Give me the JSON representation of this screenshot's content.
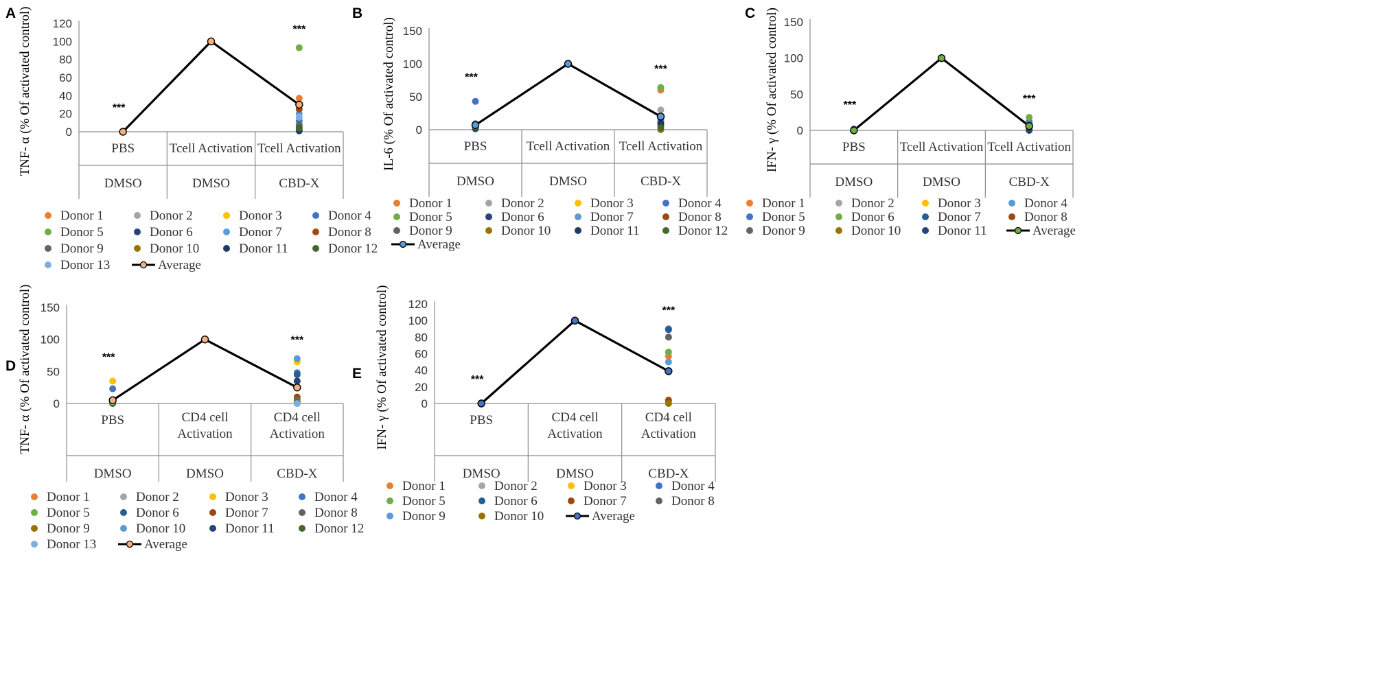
{
  "figure": {
    "panels": [
      {
        "letter": "A",
        "ylabel": "TNF- α (% Of activated control)",
        "ticks": [
          "0",
          "20",
          "40",
          "60",
          "80",
          "100",
          "120"
        ],
        "cats": [
          {
            "line1": "PBS",
            "line2": "",
            "group": "DMSO",
            "sig": "***"
          },
          {
            "line1": "Tcell Activation",
            "line2": "",
            "group": "DMSO",
            "sig": ""
          },
          {
            "line1": "Tcell Activation",
            "line2": "",
            "group": "CBD-X",
            "sig": "***"
          }
        ],
        "donors": [
          "Donor 1",
          "Donor 2",
          "Donor 3",
          "Donor 4",
          "Donor 5",
          "Donor 6",
          "Donor 7",
          "Donor 8",
          "Donor 9",
          "Donor 10",
          "Donor 11",
          "Donor 12",
          "Donor 13"
        ],
        "average_label": "Average"
      },
      {
        "letter": "B",
        "ylabel": "IL-6 (% Of activated control)",
        "ticks": [
          "0",
          "50",
          "100",
          "150"
        ],
        "cats": [
          {
            "line1": "PBS",
            "line2": "",
            "group": "DMSO",
            "sig": "***"
          },
          {
            "line1": "Tcell Activation",
            "line2": "",
            "group": "DMSO",
            "sig": ""
          },
          {
            "line1": "Tcell Activation",
            "line2": "",
            "group": "CBD-X",
            "sig": "***"
          }
        ],
        "donors": [
          "Donor 1",
          "Donor 2",
          "Donor 3",
          "Donor 4",
          "Donor 5",
          "Donor 6",
          "Donor 7",
          "Donor 8",
          "Donor 9",
          "Donor 10",
          "Donor 11",
          "Donor 12"
        ],
        "average_label": "Average"
      },
      {
        "letter": "C",
        "ylabel": "IFN- γ (% Of activated control)",
        "ticks": [
          "0",
          "50",
          "100",
          "150"
        ],
        "cats": [
          {
            "line1": "PBS",
            "line2": "",
            "group": "DMSO",
            "sig": "***"
          },
          {
            "line1": "Tcell Activation",
            "line2": "",
            "group": "DMSO",
            "sig": ""
          },
          {
            "line1": "Tcell Activation",
            "line2": "",
            "group": "CBD-X",
            "sig": "***"
          }
        ],
        "donors": [
          "Donor 1",
          "Donor 2",
          "Donor 3",
          "Donor 4",
          "Donor 5",
          "Donor 6",
          "Donor 7",
          "Donor 8",
          "Donor 9",
          "Donor 10",
          "Donor 11"
        ],
        "average_label": "Average"
      },
      {
        "letter": "D",
        "ylabel": "TNF- α (% Of activated control)",
        "ticks": [
          "0",
          "50",
          "100",
          "150"
        ],
        "cats": [
          {
            "line1": "PBS",
            "line2": "",
            "group": "DMSO",
            "sig": "***"
          },
          {
            "line1": "CD4 cell",
            "line2": "Activation",
            "group": "DMSO",
            "sig": ""
          },
          {
            "line1": "CD4 cell",
            "line2": "Activation",
            "group": "CBD-X",
            "sig": "***"
          }
        ],
        "donors": [
          "Donor 1",
          "Donor 2",
          "Donor 3",
          "Donor 4",
          "Donor 5",
          "Donor 6",
          "Donor 7",
          "Donor 8",
          "Donor 9",
          "Donor 10",
          "Donor 11",
          "Donor 12",
          "Donor 13"
        ],
        "average_label": "Average"
      },
      {
        "letter": "E",
        "ylabel": "IFN- γ (% Of activated control)",
        "ticks": [
          "0",
          "20",
          "40",
          "60",
          "80",
          "100",
          "120"
        ],
        "cats": [
          {
            "line1": "PBS",
            "line2": "",
            "group": "DMSO",
            "sig": "***"
          },
          {
            "line1": "CD4 cell",
            "line2": "Activation",
            "group": "DMSO",
            "sig": ""
          },
          {
            "line1": "CD4 cell",
            "line2": "Activation",
            "group": "CBD-X",
            "sig": "***"
          }
        ],
        "donors": [
          "Donor 1",
          "Donor 2",
          "Donor 3",
          "Donor 4",
          "Donor 5",
          "Donor 6",
          "Donor 7",
          "Donor 8",
          "Donor 9",
          "Donor 10"
        ],
        "average_label": "Average"
      }
    ]
  },
  "chart_data": [
    {
      "panel": "A",
      "type": "scatter",
      "categories": [
        "PBS / DMSO",
        "Tcell Activation / DMSO",
        "Tcell Activation / CBD-X"
      ],
      "ylabel": "TNF- α (% Of activated control)",
      "ylim": [
        0,
        120
      ],
      "series": [
        {
          "name": "Donor 1",
          "color": "#ED7D31",
          "values": [
            0,
            100,
            37
          ]
        },
        {
          "name": "Donor 2",
          "color": "#A5A5A5",
          "values": [
            0,
            100,
            8
          ]
        },
        {
          "name": "Donor 3",
          "color": "#FFC000",
          "values": [
            0,
            100,
            3
          ]
        },
        {
          "name": "Donor 4",
          "color": "#4472C4",
          "values": [
            0,
            100,
            12
          ]
        },
        {
          "name": "Donor 5",
          "color": "#70AD47",
          "values": [
            0,
            100,
            93
          ]
        },
        {
          "name": "Donor 6",
          "color": "#264478",
          "values": [
            0,
            100,
            5
          ]
        },
        {
          "name": "Donor 7",
          "color": "#5B9BD5",
          "values": [
            0,
            100,
            20
          ]
        },
        {
          "name": "Donor 8",
          "color": "#9E480E",
          "values": [
            0,
            100,
            25
          ]
        },
        {
          "name": "Donor 9",
          "color": "#636363",
          "values": [
            0,
            100,
            7
          ]
        },
        {
          "name": "Donor 10",
          "color": "#997300",
          "values": [
            0,
            100,
            2
          ]
        },
        {
          "name": "Donor 11",
          "color": "#203864",
          "values": [
            0,
            100,
            1
          ]
        },
        {
          "name": "Donor 12",
          "color": "#43682B",
          "values": [
            0,
            100,
            4
          ]
        },
        {
          "name": "Donor 13",
          "color": "#7CAFDD",
          "values": [
            0,
            100,
            16
          ]
        },
        {
          "name": "Average",
          "type": "line",
          "color": "#000000",
          "marker": "#F4B183",
          "values": [
            0,
            100,
            30
          ]
        }
      ]
    },
    {
      "panel": "B",
      "type": "scatter",
      "categories": [
        "PBS / DMSO",
        "Tcell Activation / DMSO",
        "Tcell Activation / CBD-X"
      ],
      "ylabel": "IL-6 (% Of activated control)",
      "ylim": [
        0,
        150
      ],
      "series": [
        {
          "name": "Donor 1",
          "color": "#ED7D31",
          "values": [
            5,
            100,
            60
          ]
        },
        {
          "name": "Donor 2",
          "color": "#A5A5A5",
          "values": [
            3,
            100,
            30
          ]
        },
        {
          "name": "Donor 3",
          "color": "#FFC000",
          "values": [
            2,
            100,
            5
          ]
        },
        {
          "name": "Donor 4",
          "color": "#4472C4",
          "values": [
            43,
            100,
            15
          ]
        },
        {
          "name": "Donor 5",
          "color": "#70AD47",
          "values": [
            4,
            100,
            64
          ]
        },
        {
          "name": "Donor 6",
          "color": "#264478",
          "values": [
            2,
            100,
            8
          ]
        },
        {
          "name": "Donor 7",
          "color": "#5B9BD5",
          "values": [
            1,
            100,
            12
          ]
        },
        {
          "name": "Donor 8",
          "color": "#9E480E",
          "values": [
            6,
            100,
            20
          ]
        },
        {
          "name": "Donor 9",
          "color": "#636363",
          "values": [
            9,
            100,
            18
          ]
        },
        {
          "name": "Donor 10",
          "color": "#997300",
          "values": [
            3,
            100,
            0
          ]
        },
        {
          "name": "Donor 11",
          "color": "#203864",
          "values": [
            2,
            100,
            10
          ]
        },
        {
          "name": "Donor 12",
          "color": "#43682B",
          "values": [
            4,
            100,
            3
          ]
        },
        {
          "name": "Average",
          "type": "line",
          "color": "#000000",
          "marker": "#5B9BD5",
          "values": [
            7,
            100,
            20
          ]
        }
      ]
    },
    {
      "panel": "C",
      "type": "scatter",
      "categories": [
        "PBS / DMSO",
        "Tcell Activation / DMSO",
        "Tcell Activation / CBD-X"
      ],
      "ylabel": "IFN- γ (% Of activated control)",
      "ylim": [
        0,
        150
      ],
      "series": [
        {
          "name": "Donor 1",
          "color": "#ED7D31",
          "values": [
            0,
            100,
            5
          ]
        },
        {
          "name": "Donor 2",
          "color": "#A5A5A5",
          "values": [
            0,
            100,
            8
          ]
        },
        {
          "name": "Donor 3",
          "color": "#FFC000",
          "values": [
            0,
            100,
            2
          ]
        },
        {
          "name": "Donor 4",
          "color": "#5B9BD5",
          "values": [
            1,
            100,
            10
          ]
        },
        {
          "name": "Donor 5",
          "color": "#4472C4",
          "values": [
            2,
            100,
            12
          ]
        },
        {
          "name": "Donor 6",
          "color": "#70AD47",
          "values": [
            0,
            100,
            18
          ]
        },
        {
          "name": "Donor 7",
          "color": "#255E91",
          "values": [
            1,
            100,
            6
          ]
        },
        {
          "name": "Donor 8",
          "color": "#9E480E",
          "values": [
            0,
            100,
            3
          ]
        },
        {
          "name": "Donor 9",
          "color": "#636363",
          "values": [
            0,
            100,
            4
          ]
        },
        {
          "name": "Donor 10",
          "color": "#997300",
          "values": [
            0,
            100,
            1
          ]
        },
        {
          "name": "Donor 11",
          "color": "#264478",
          "values": [
            0,
            100,
            0
          ]
        },
        {
          "name": "Average",
          "type": "line",
          "color": "#000000",
          "marker": "#70AD47",
          "values": [
            0,
            100,
            6
          ]
        }
      ]
    },
    {
      "panel": "D",
      "type": "scatter",
      "categories": [
        "PBS / DMSO",
        "CD4 cell Activation / DMSO",
        "CD4 cell Activation / CBD-X"
      ],
      "ylabel": "TNF- α (% Of activated control)",
      "ylim": [
        0,
        150
      ],
      "series": [
        {
          "name": "Donor 1",
          "color": "#ED7D31",
          "values": [
            2,
            100,
            0
          ]
        },
        {
          "name": "Donor 2",
          "color": "#A5A5A5",
          "values": [
            4,
            100,
            25
          ]
        },
        {
          "name": "Donor 3",
          "color": "#FFC000",
          "values": [
            35,
            100,
            65
          ]
        },
        {
          "name": "Donor 4",
          "color": "#4472C4",
          "values": [
            23,
            100,
            48
          ]
        },
        {
          "name": "Donor 5",
          "color": "#70AD47",
          "values": [
            0,
            100,
            2
          ]
        },
        {
          "name": "Donor 6",
          "color": "#255E91",
          "values": [
            5,
            100,
            45
          ]
        },
        {
          "name": "Donor 7",
          "color": "#9E480E",
          "values": [
            1,
            100,
            10
          ]
        },
        {
          "name": "Donor 8",
          "color": "#636363",
          "values": [
            3,
            100,
            6
          ]
        },
        {
          "name": "Donor 9",
          "color": "#997300",
          "values": [
            1,
            100,
            3
          ]
        },
        {
          "name": "Donor 10",
          "color": "#5B9BD5",
          "values": [
            6,
            100,
            70
          ]
        },
        {
          "name": "Donor 11",
          "color": "#264478",
          "values": [
            2,
            100,
            35
          ]
        },
        {
          "name": "Donor 12",
          "color": "#43682B",
          "values": [
            0,
            100,
            1
          ]
        },
        {
          "name": "Donor 13",
          "color": "#7CAFDD",
          "values": [
            3,
            100,
            0
          ]
        },
        {
          "name": "Average",
          "type": "line",
          "color": "#000000",
          "marker": "#F4B183",
          "values": [
            5,
            100,
            25
          ]
        }
      ]
    },
    {
      "panel": "E",
      "type": "scatter",
      "categories": [
        "PBS / DMSO",
        "CD4 cell Activation / DMSO",
        "CD4 cell Activation / CBD-X"
      ],
      "ylabel": "IFN- γ (% Of activated control)",
      "ylim": [
        0,
        120
      ],
      "series": [
        {
          "name": "Donor 1",
          "color": "#ED7D31",
          "values": [
            0,
            100,
            57
          ]
        },
        {
          "name": "Donor 2",
          "color": "#A5A5A5",
          "values": [
            0,
            100,
            38
          ]
        },
        {
          "name": "Donor 3",
          "color": "#FFC000",
          "values": [
            0,
            100,
            2
          ]
        },
        {
          "name": "Donor 4",
          "color": "#4472C4",
          "values": [
            0,
            100,
            90
          ]
        },
        {
          "name": "Donor 5",
          "color": "#70AD47",
          "values": [
            0,
            100,
            62
          ]
        },
        {
          "name": "Donor 6",
          "color": "#255E91",
          "values": [
            0,
            100,
            89
          ]
        },
        {
          "name": "Donor 7",
          "color": "#9E480E",
          "values": [
            0,
            100,
            4
          ]
        },
        {
          "name": "Donor 8",
          "color": "#636363",
          "values": [
            0,
            100,
            80
          ]
        },
        {
          "name": "Donor 9",
          "color": "#5B9BD5",
          "values": [
            0,
            100,
            50
          ]
        },
        {
          "name": "Donor 10",
          "color": "#997300",
          "values": [
            0,
            100,
            0
          ]
        },
        {
          "name": "Average",
          "type": "line",
          "color": "#000000",
          "marker": "#4472C4",
          "values": [
            0,
            100,
            39
          ]
        }
      ]
    }
  ]
}
